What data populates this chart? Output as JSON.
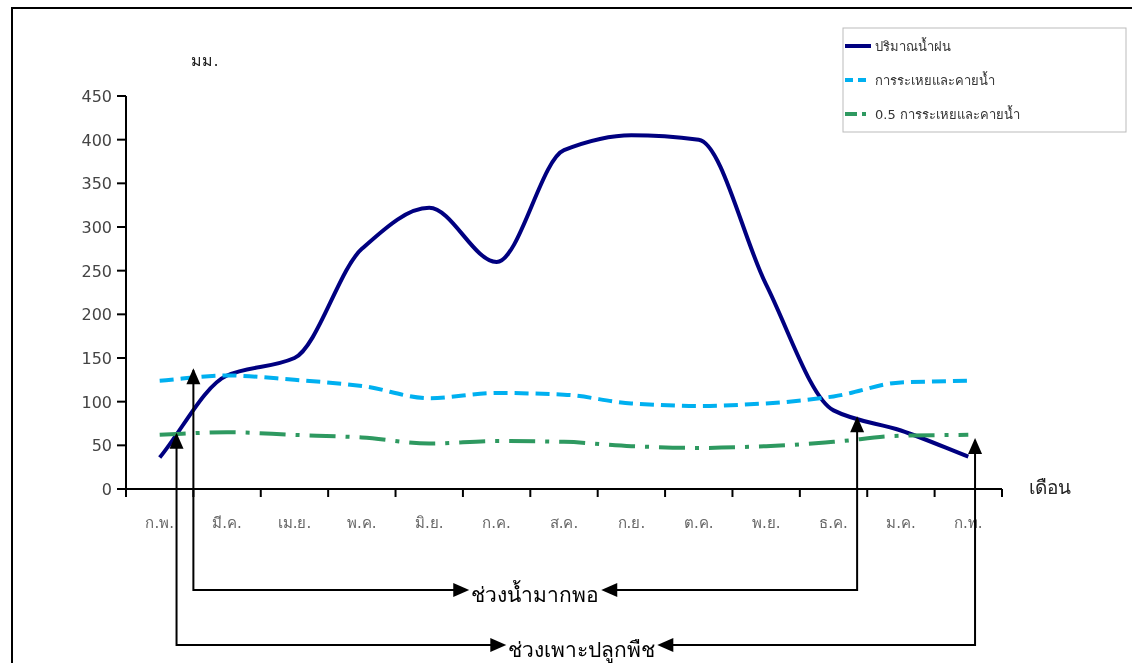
{
  "chart_data": {
    "type": "line",
    "categories": [
      "ก.พ.",
      "มี.ค.",
      "เม.ย.",
      "พ.ค.",
      "มิ.ย.",
      "ก.ค.",
      "ส.ค.",
      "ก.ย.",
      "ต.ค.",
      "พ.ย.",
      "ธ.ค.",
      "ม.ค.",
      "ก.พ."
    ],
    "series": [
      {
        "name": "ปริมาณน้ำฝน",
        "color": "#000080",
        "line_style": "solid",
        "values": [
          36,
          130,
          150,
          275,
          322,
          260,
          388,
          405,
          400,
          234,
          90,
          67,
          37
        ]
      },
      {
        "name": "การระเหยและคายน้ำ",
        "color": "#00b0f0",
        "line_style": "dashed",
        "values": [
          124,
          130,
          125,
          118,
          104,
          110,
          108,
          98,
          95,
          98,
          106,
          122,
          124
        ]
      },
      {
        "name": "0.5 การระเหยและคายน้ำ",
        "color": "#2e9960",
        "line_style": "dashdot",
        "values": [
          62,
          65,
          62,
          59,
          52,
          55,
          54,
          49,
          47,
          49,
          54,
          61,
          62
        ]
      }
    ],
    "ylabel": "มม.",
    "xlabel": "เดือน",
    "ylim": [
      0,
      450
    ],
    "yticks": [
      0,
      50,
      100,
      150,
      200,
      250,
      300,
      350,
      400,
      450
    ],
    "grid": false,
    "legend": "top right",
    "marker": "none",
    "annotations": [
      "ช่วงน้ำมากพอ",
      "ช่วงเพาะปลูกพืช"
    ]
  }
}
